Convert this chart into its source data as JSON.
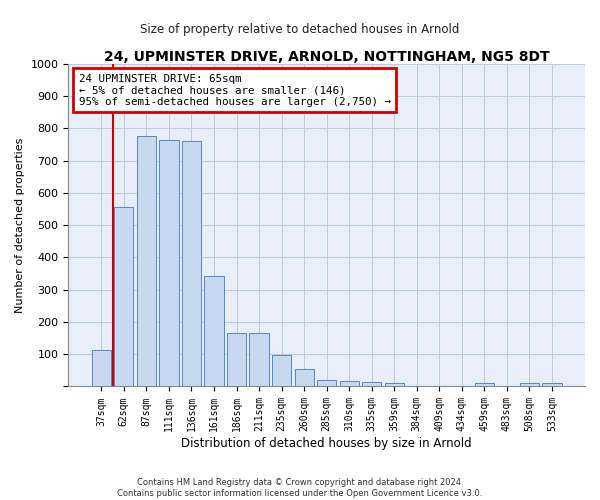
{
  "title": "24, UPMINSTER DRIVE, ARNOLD, NOTTINGHAM, NG5 8DT",
  "subtitle": "Size of property relative to detached houses in Arnold",
  "xlabel": "Distribution of detached houses by size in Arnold",
  "ylabel": "Number of detached properties",
  "footer_line1": "Contains HM Land Registry data © Crown copyright and database right 2024.",
  "footer_line2": "Contains public sector information licensed under the Open Government Licence v3.0.",
  "bar_labels": [
    "37sqm",
    "62sqm",
    "87sqm",
    "111sqm",
    "136sqm",
    "161sqm",
    "186sqm",
    "211sqm",
    "235sqm",
    "260sqm",
    "285sqm",
    "310sqm",
    "335sqm",
    "359sqm",
    "384sqm",
    "409sqm",
    "434sqm",
    "459sqm",
    "483sqm",
    "508sqm",
    "533sqm"
  ],
  "bar_values": [
    112,
    558,
    778,
    765,
    762,
    343,
    165,
    165,
    97,
    53,
    20,
    17,
    15,
    12,
    0,
    0,
    0,
    12,
    0,
    12,
    12
  ],
  "bar_color": "#c8d8ee",
  "bar_edge_color": "#5588cc",
  "annotation_text_line1": "24 UPMINSTER DRIVE: 65sqm",
  "annotation_text_line2": "← 5% of detached houses are smaller (146)",
  "annotation_text_line3": "95% of semi-detached houses are larger (2,750) →",
  "annotation_box_color": "#ffffff",
  "annotation_box_edge_color": "#cc0000",
  "ylim": [
    0,
    1000
  ],
  "yticks": [
    0,
    100,
    200,
    300,
    400,
    500,
    600,
    700,
    800,
    900,
    1000
  ],
  "background_color": "#e8eef8",
  "grid_color": "#c0c8d8",
  "title_fontsize": 10,
  "tick_fontsize": 7,
  "ylabel_fontsize": 8,
  "xlabel_fontsize": 8.5
}
